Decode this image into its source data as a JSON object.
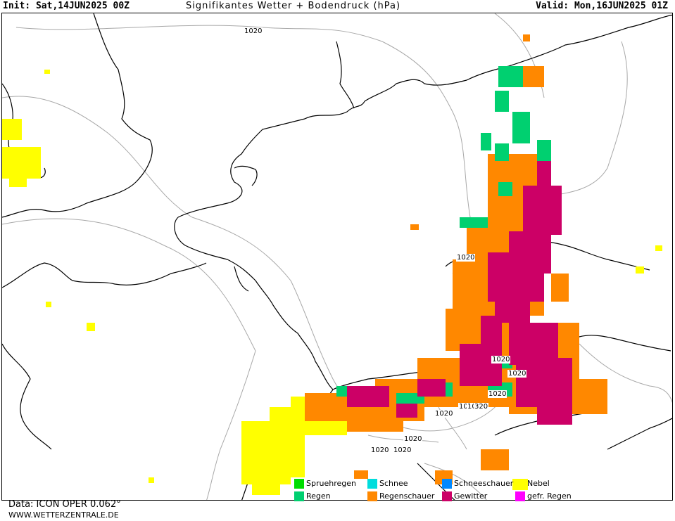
{
  "header": {
    "init": "Init: Sat,14JUN2025 00Z",
    "title": "Signifikantes Wetter + Bodendruck (hPa)",
    "valid": "Valid: Mon,16JUN2025 01Z"
  },
  "isobars": [
    "1020",
    "1020",
    "1020",
    "1020",
    "1020",
    "1020",
    "1020",
    "1020",
    "320",
    "1020",
    "1020",
    "1020"
  ],
  "legend": {
    "items": [
      {
        "label": "Spruehregen",
        "color": "#00dd00"
      },
      {
        "label": "Regen",
        "color": "#00d070"
      },
      {
        "label": "Schnee",
        "color": "#00dddd"
      },
      {
        "label": "Regenschauer",
        "color": "#ff8800"
      },
      {
        "label": "Schneeschauer",
        "color": "#0088ff"
      },
      {
        "label": "Gewitter",
        "color": "#cc0066"
      },
      {
        "label": "Nebel",
        "color": "#ffff00"
      },
      {
        "label": "gefr. Regen",
        "color": "#ff00ff"
      }
    ]
  },
  "footer": {
    "source": "Data: ICON OPER 0.062°",
    "site": "WWW.WETTERZENTRALE.DE"
  }
}
